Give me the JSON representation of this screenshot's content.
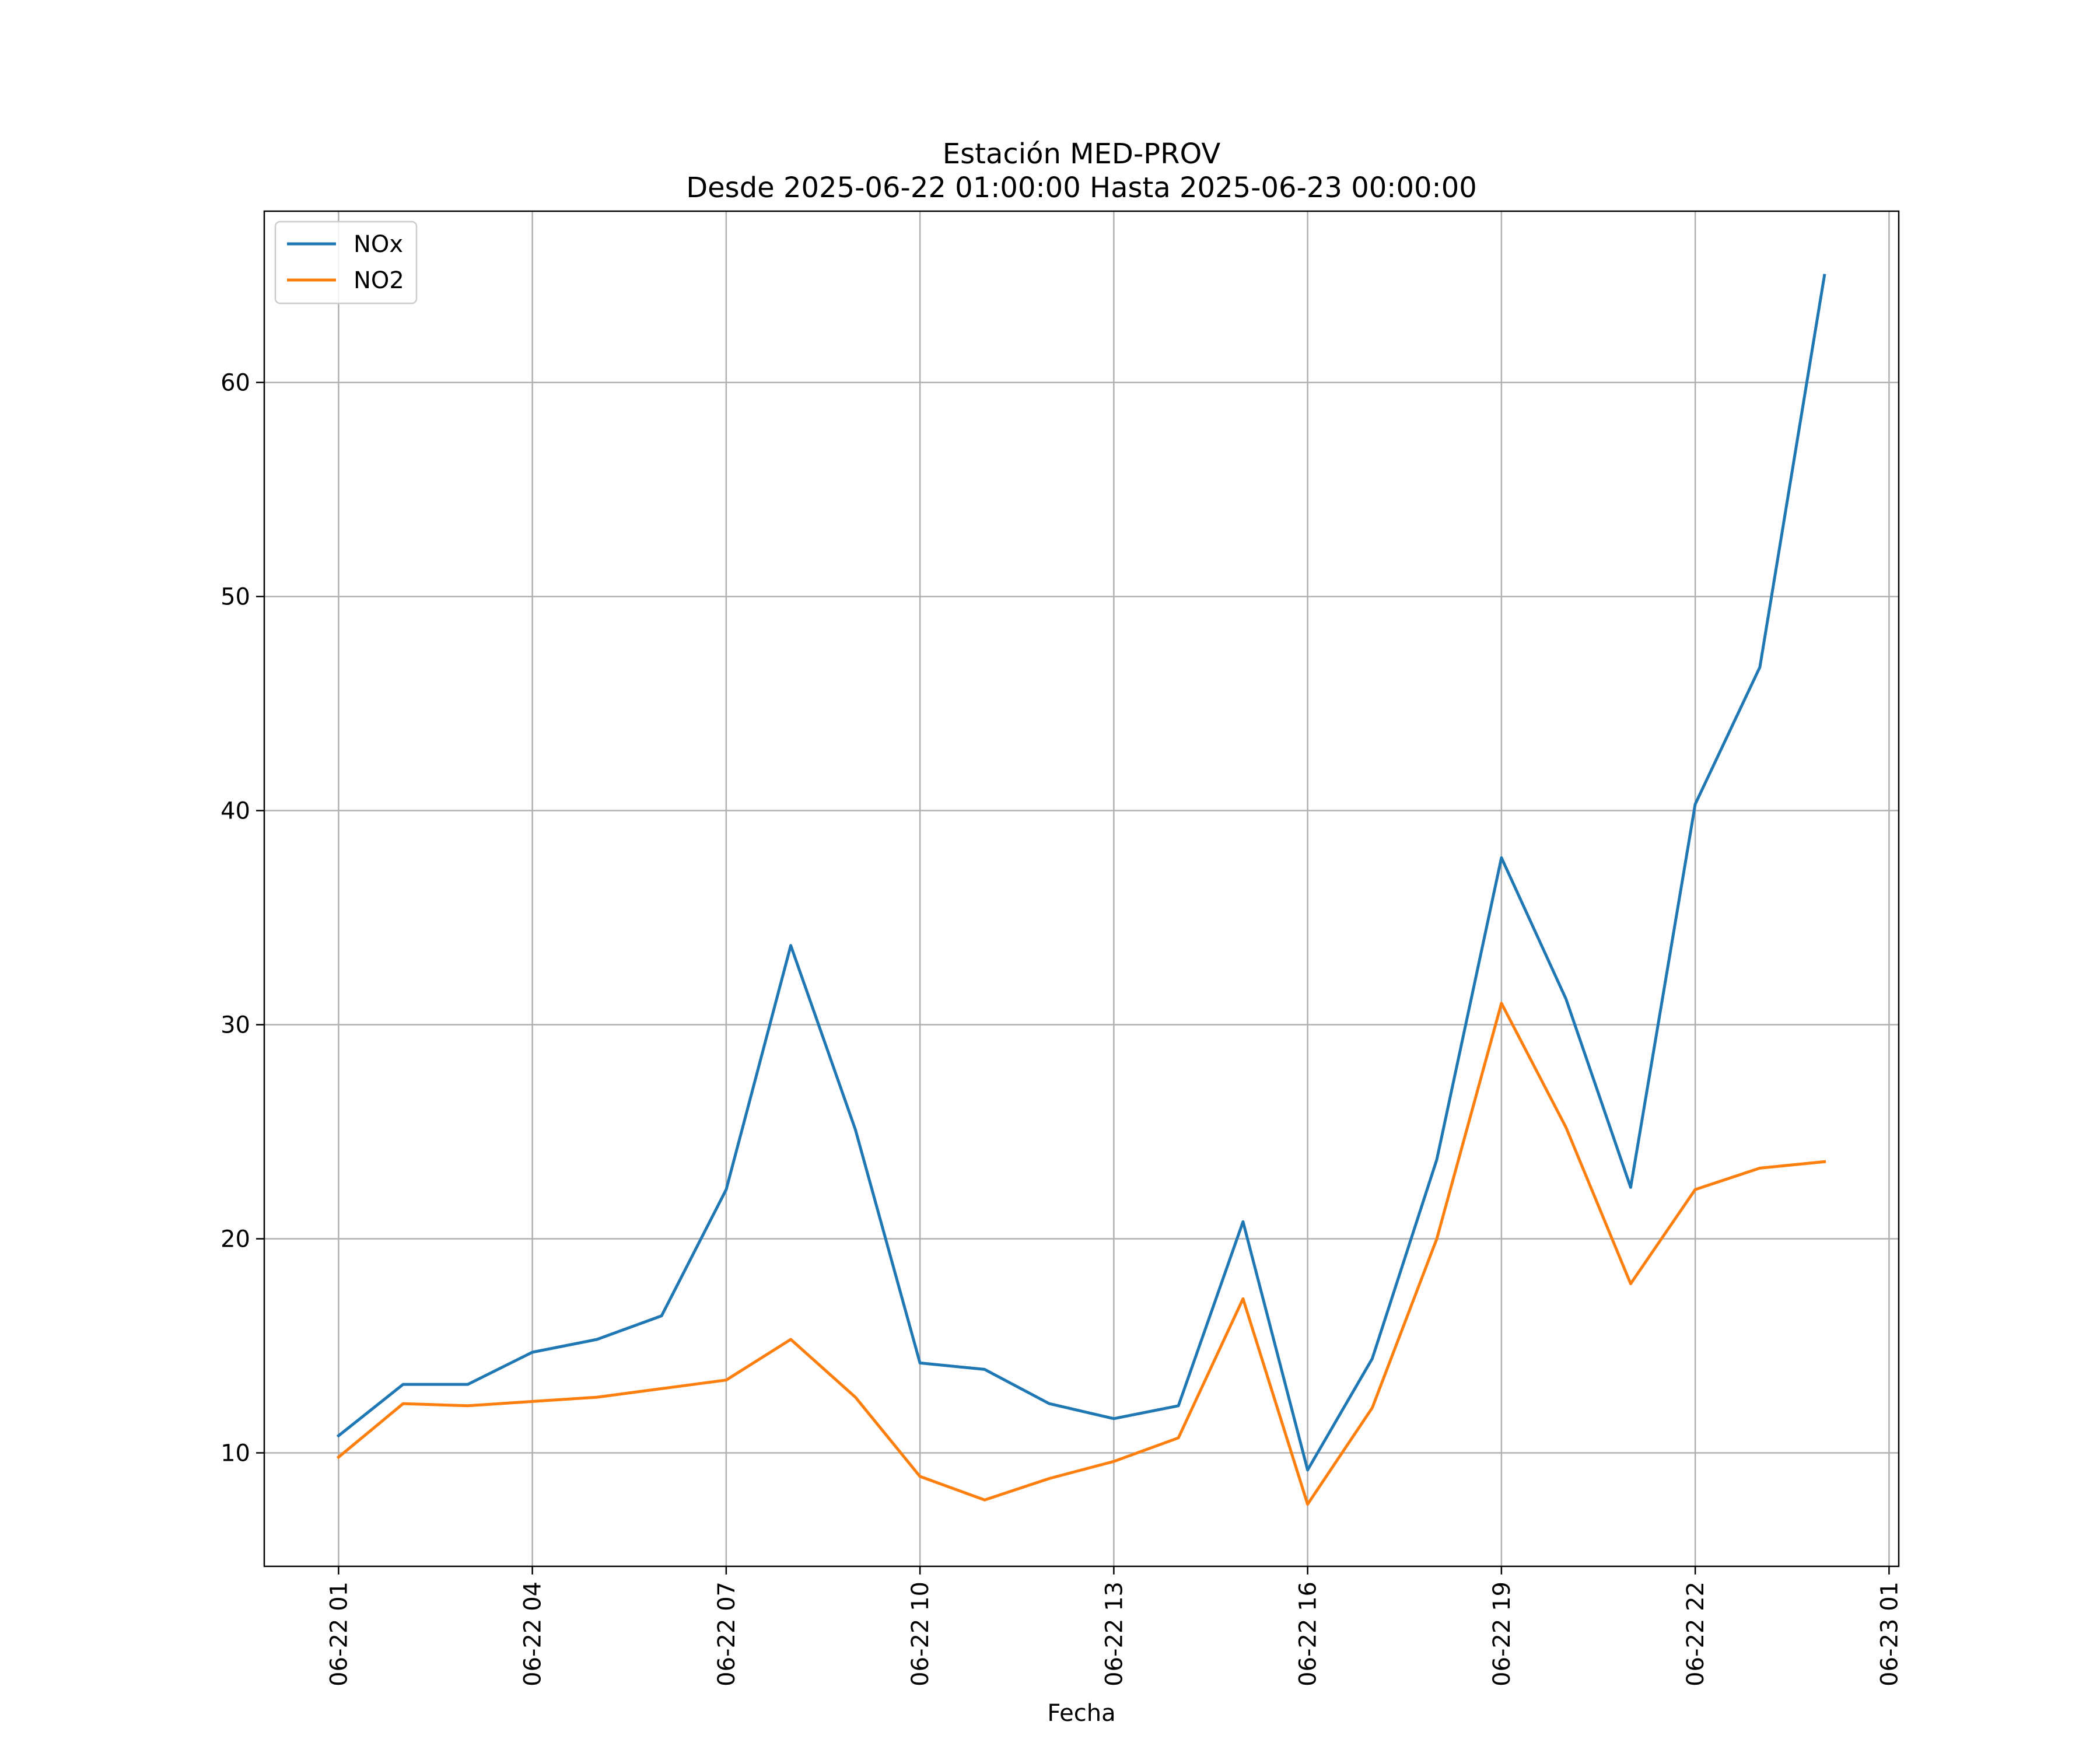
{
  "chart_data": {
    "type": "line",
    "title": "Estación MED-PROV",
    "subtitle": "Desde 2025-06-22 01:00:00 Hasta 2025-06-23 00:00:00",
    "xlabel": "Fecha",
    "ylabel": "",
    "x": [
      "2025-06-22 01:00",
      "2025-06-22 02:00",
      "2025-06-22 03:00",
      "2025-06-22 04:00",
      "2025-06-22 05:00",
      "2025-06-22 06:00",
      "2025-06-22 07:00",
      "2025-06-22 08:00",
      "2025-06-22 09:00",
      "2025-06-22 10:00",
      "2025-06-22 11:00",
      "2025-06-22 12:00",
      "2025-06-22 13:00",
      "2025-06-22 14:00",
      "2025-06-22 15:00",
      "2025-06-22 16:00",
      "2025-06-22 17:00",
      "2025-06-22 18:00",
      "2025-06-22 19:00",
      "2025-06-22 20:00",
      "2025-06-22 21:00",
      "2025-06-22 22:00",
      "2025-06-22 23:00",
      "2025-06-23 00:00"
    ],
    "series": [
      {
        "name": "NOx",
        "color": "#1f77b4",
        "values": [
          10.8,
          13.2,
          13.2,
          14.7,
          15.3,
          16.4,
          22.3,
          33.7,
          25.1,
          14.2,
          13.9,
          12.3,
          11.6,
          12.2,
          20.8,
          9.2,
          14.4,
          23.7,
          37.8,
          31.2,
          22.4,
          40.3,
          46.7,
          65.0
        ]
      },
      {
        "name": "NO2",
        "color": "#ff7f0e",
        "values": [
          9.8,
          12.3,
          12.2,
          12.4,
          12.6,
          13.0,
          13.4,
          15.3,
          12.6,
          8.9,
          7.8,
          8.8,
          9.6,
          10.7,
          17.2,
          7.6,
          12.1,
          20.0,
          31.0,
          25.2,
          17.9,
          22.3,
          23.3,
          23.6
        ]
      }
    ],
    "x_ticks": [
      "06-22 01",
      "06-22 04",
      "06-22 07",
      "06-22 10",
      "06-22 13",
      "06-22 16",
      "06-22 19",
      "06-22 22",
      "06-23 01"
    ],
    "x_tick_times": [
      "2025-06-22 01:00",
      "2025-06-22 04:00",
      "2025-06-22 07:00",
      "2025-06-22 10:00",
      "2025-06-22 13:00",
      "2025-06-22 16:00",
      "2025-06-22 19:00",
      "2025-06-22 22:00",
      "2025-06-23 01:00"
    ],
    "xlim": [
      "2025-06-21 23:51",
      "2025-06-23 01:09"
    ],
    "y_ticks": [
      10,
      20,
      30,
      40,
      50,
      60
    ],
    "ylim": [
      4.7,
      68.0
    ],
    "grid": true,
    "legend_position": "top-left"
  }
}
